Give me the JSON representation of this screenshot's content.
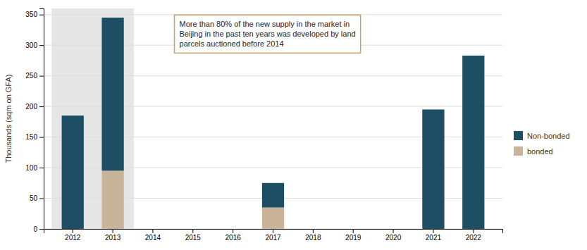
{
  "chart_data": {
    "type": "bar",
    "stacked": true,
    "categories": [
      "2012",
      "2013",
      "2014",
      "2015",
      "2016",
      "2017",
      "2018",
      "2019",
      "2020",
      "2021",
      "2022"
    ],
    "series": [
      {
        "name": "bonded",
        "color": "#c9b49a",
        "values": [
          0,
          95,
          0,
          0,
          0,
          35,
          0,
          0,
          0,
          0,
          0
        ]
      },
      {
        "name": "Non-bonded",
        "color": "#1d4e63",
        "values": [
          185,
          250,
          0,
          0,
          0,
          40,
          0,
          0,
          0,
          195,
          283
        ]
      }
    ],
    "y_label": "Thousands (sqm on GFA)",
    "ylim": [
      0,
      360
    ],
    "yticks": [
      0,
      50,
      100,
      150,
      200,
      250,
      300,
      350
    ],
    "grid": true,
    "legend": "right",
    "annotations": [
      "More than 80% of the new supply in the market in\nBeijing in the past ten years was developed by land\nparcels auctioned before 2014"
    ]
  }
}
